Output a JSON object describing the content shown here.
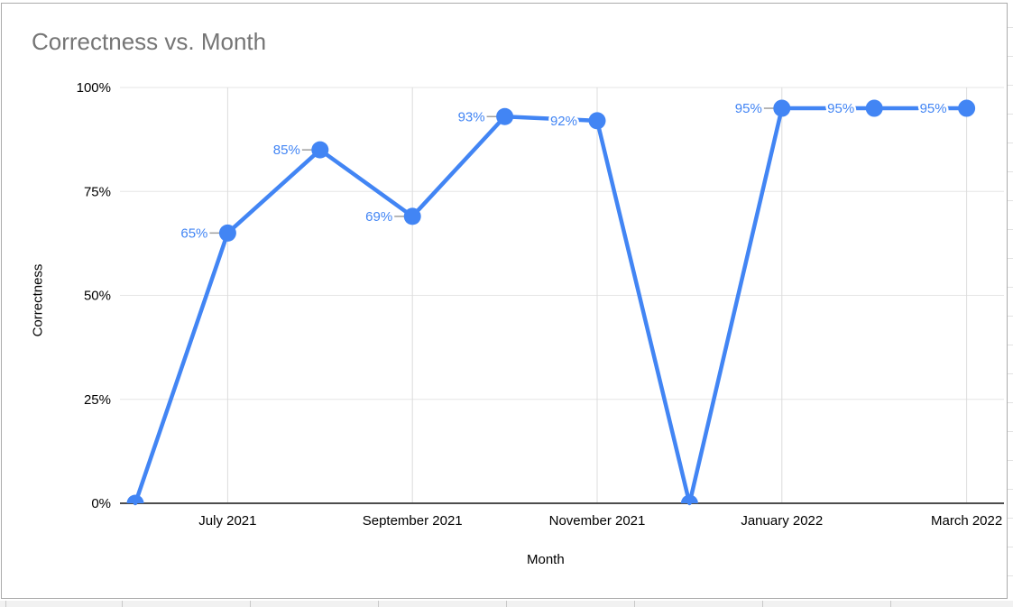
{
  "app": {
    "context": "spreadsheet-embedded-chart"
  },
  "colors": {
    "series": "#4285f4",
    "annotation_text": "#4285f4",
    "title_text": "#757575",
    "axis_text": "#000000",
    "gridline": "#e6e6e6",
    "vertical_gridline": "#dcdcdc",
    "baseline": "#4d4d4d",
    "annotation_stem": "#9e9e9e",
    "card_border": "#ababab",
    "sheet_strip_bg": "#f1f1f1",
    "sheet_strip_line": "#c9c9c9",
    "sheet_row_line": "#e2e2e2"
  },
  "chart_data": {
    "type": "line",
    "title": "Correctness vs. Month",
    "xlabel": "Month",
    "ylabel": "Correctness",
    "x": [
      "June 2021",
      "July 2021",
      "August 2021",
      "September 2021",
      "October 2021",
      "November 2021",
      "December 2021",
      "January 2022",
      "February 2022",
      "March 2022"
    ],
    "values": [
      0,
      65,
      85,
      69,
      93,
      92,
      0,
      95,
      95,
      95
    ],
    "point_labels": [
      "",
      "65%",
      "85%",
      "69%",
      "93%",
      "92%",
      "",
      "95%",
      "95%",
      "95%"
    ],
    "x_tick_labels": [
      "July 2021",
      "September 2021",
      "November 2021",
      "January 2022",
      "March 2022"
    ],
    "x_tick_indices": [
      1,
      3,
      5,
      7,
      9
    ],
    "y_tick_labels": [
      "0%",
      "25%",
      "50%",
      "75%",
      "100%"
    ],
    "y_tick_values": [
      0,
      25,
      50,
      75,
      100
    ],
    "ylim": [
      0,
      100
    ],
    "legend": "none",
    "grid": true
  }
}
